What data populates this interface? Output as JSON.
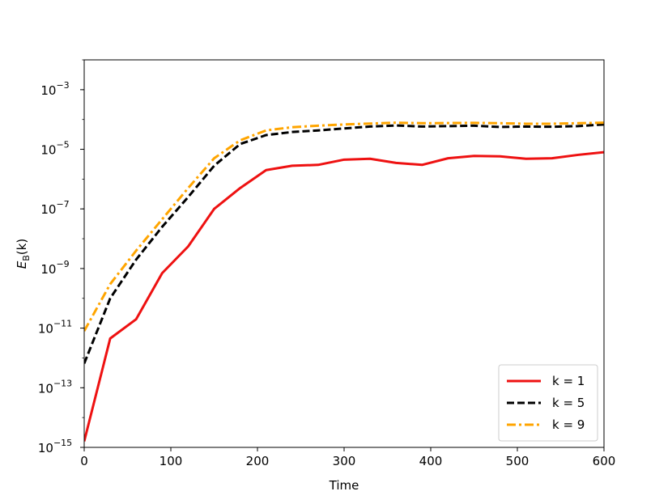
{
  "chart_data": {
    "type": "line",
    "xlabel": "Time",
    "ylabel_base": "E",
    "ylabel_sub": "B",
    "ylabel_arg": "(k)",
    "xlim": [
      0,
      600
    ],
    "ylim_exp": [
      -15,
      -2
    ],
    "yscale": "log",
    "grid": false,
    "legend_position": "lower-right",
    "x_ticks": [
      "0",
      "100",
      "200",
      "300",
      "400",
      "500",
      "600"
    ],
    "x_tick_values": [
      0,
      100,
      200,
      300,
      400,
      500,
      600
    ],
    "y_tick_exponents": [
      "−15",
      "−13",
      "−11",
      "−9",
      "−7",
      "−5",
      "−3"
    ],
    "y_tick_values": [
      -15,
      -13,
      -11,
      -9,
      -7,
      -5,
      -3
    ],
    "y_tick_base": "10",
    "x": [
      0,
      30,
      60,
      90,
      120,
      150,
      180,
      210,
      240,
      270,
      300,
      330,
      360,
      390,
      420,
      450,
      480,
      510,
      540,
      570,
      600
    ],
    "series": [
      {
        "name": "k = 1",
        "color": "#ee1111",
        "style": "solid",
        "values": [
          1.6e-15,
          4.5e-12,
          2e-11,
          7e-10,
          5.5e-09,
          1e-07,
          5e-07,
          2e-06,
          2.8e-06,
          3e-06,
          4.5e-06,
          4.8e-06,
          3.5e-06,
          3e-06,
          5e-06,
          6e-06,
          5.8e-06,
          4.8e-06,
          5e-06,
          6.5e-06,
          8e-06
        ]
      },
      {
        "name": "k = 5",
        "color": "#000000",
        "style": "dashed",
        "values": [
          6.5e-13,
          1e-10,
          2e-09,
          2.5e-08,
          2.5e-07,
          2.8e-06,
          1.5e-05,
          3e-05,
          3.8e-05,
          4.3e-05,
          5e-05,
          5.8e-05,
          6.3e-05,
          5.8e-05,
          6e-05,
          6.2e-05,
          5.6e-05,
          5.8e-05,
          5.7e-05,
          6e-05,
          6.8e-05
        ]
      },
      {
        "name": "k = 9",
        "color": "#ffa500",
        "style": "dashdot",
        "values": [
          8e-12,
          3e-10,
          4e-09,
          4.5e-08,
          5e-07,
          5e-06,
          2e-05,
          4.3e-05,
          5.5e-05,
          6.2e-05,
          6.8e-05,
          7.3e-05,
          7.8e-05,
          7.5e-05,
          7.6e-05,
          7.7e-05,
          7.5e-05,
          7.2e-05,
          7.2e-05,
          7.5e-05,
          7.8e-05
        ]
      }
    ]
  }
}
